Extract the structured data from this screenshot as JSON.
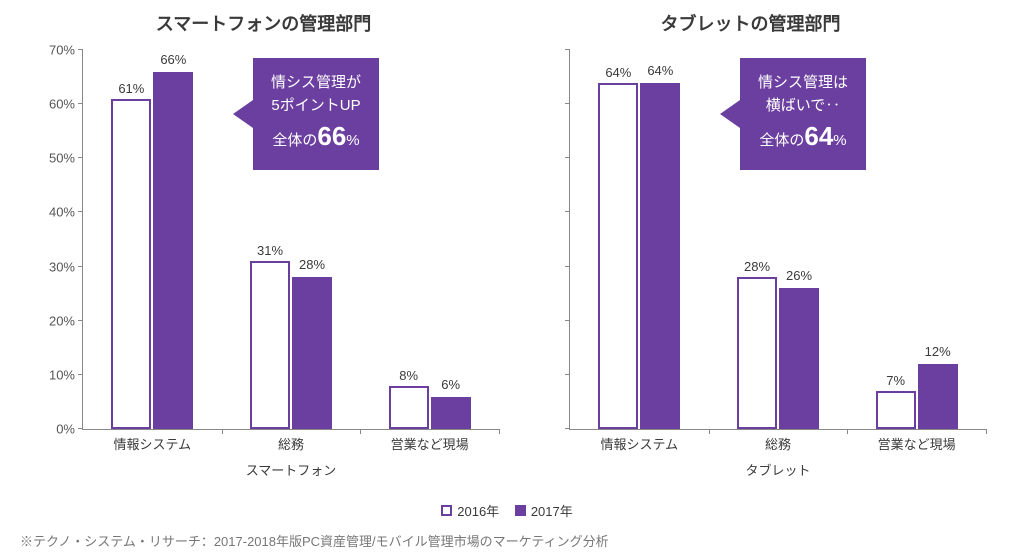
{
  "colors": {
    "series_a": "#6b3fa0",
    "series_b": "#6b3fa0",
    "callout_bg": "#6b3fa0",
    "axis": "#888888",
    "text": "#3a3a3a"
  },
  "yaxis": {
    "min": 0,
    "max": 70,
    "step": 10,
    "suffix": "%"
  },
  "legend": {
    "a": "2016年",
    "b": "2017年"
  },
  "panels": [
    {
      "title": "スマートフォンの管理部門",
      "group_label": "スマートフォン",
      "categories": [
        {
          "label": "情報システム",
          "a": 61,
          "b": 66
        },
        {
          "label": "総務",
          "a": 31,
          "b": 28
        },
        {
          "label": "営業など現場",
          "a": 8,
          "b": 6
        }
      ],
      "callout": {
        "line1": "情シス管理が",
        "line2": "5ポイントUP",
        "line3_pre": "全体の",
        "line3_big": "66",
        "line3_suf": "%"
      }
    },
    {
      "title": "タブレットの管理部門",
      "group_label": "タブレット",
      "categories": [
        {
          "label": "情報システム",
          "a": 64,
          "b": 64
        },
        {
          "label": "総務",
          "a": 28,
          "b": 26
        },
        {
          "label": "営業など現場",
          "a": 7,
          "b": 12
        }
      ],
      "callout": {
        "line1": "情シス管理は",
        "line2": "横ばいで‥",
        "line3_pre": "全体の",
        "line3_big": "64",
        "line3_suf": "%"
      }
    }
  ],
  "footnote": "※テクノ・システム・リサーチ：2017-2018年版PC資産管理/モバイル管理市場のマーケティング分析"
}
